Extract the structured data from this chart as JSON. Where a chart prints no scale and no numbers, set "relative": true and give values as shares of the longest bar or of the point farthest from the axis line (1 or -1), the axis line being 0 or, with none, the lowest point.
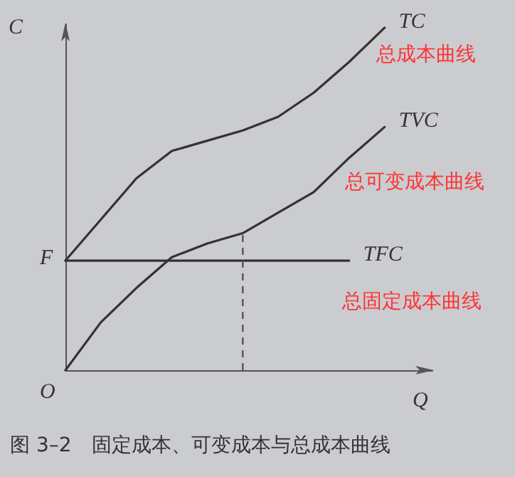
{
  "chart_data": {
    "type": "line",
    "relative": true,
    "title": "图 3–2　固定成本、可变成本与总成本曲线",
    "xlabel": "Q",
    "ylabel": "C",
    "grid": false,
    "legend": false,
    "marker": "none",
    "line_style": "solid",
    "categories": [
      null,
      null,
      null,
      null,
      null,
      null,
      null,
      null,
      null,
      null
    ],
    "series": [
      {
        "name": "TC",
        "color": "#333333",
        "values": [
          0.32,
          0.44,
          0.56,
          0.64,
          0.67,
          0.7,
          0.74,
          0.81,
          0.9,
          1
        ]
      },
      {
        "name": "TVC",
        "color": "#333333",
        "values": [
          0,
          0.14,
          0.24,
          0.33,
          0.37,
          0.4,
          0.46,
          0.52,
          0.62,
          0.71
        ]
      },
      {
        "name": "TFC",
        "color": "#333333",
        "values": [
          0.32,
          0.32,
          0.32,
          0.32,
          0.32,
          0.32,
          0.32,
          0.32,
          0.32,
          null
        ]
      }
    ],
    "annotations": [
      "总成本曲线",
      "总可变成本曲线",
      "总固定成本曲线",
      "F",
      "O"
    ]
  }
}
